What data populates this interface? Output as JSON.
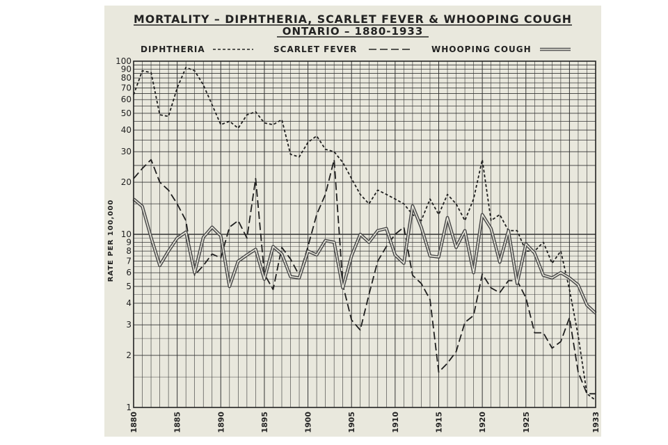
{
  "chart_data": {
    "type": "line",
    "title": "MORTALITY – DIPHTHERIA, SCARLET FEVER & WHOOPING COUGH",
    "subtitle": "ONTARIO – 1880-1933",
    "ylabel": "RATE PER 100,000",
    "xlabel": "",
    "yscale": "log",
    "ylim": [
      1,
      100
    ],
    "xlim": [
      1880,
      1933
    ],
    "grid": true,
    "legend_position": "top",
    "y_tick_labels": [
      "1",
      "2",
      "3",
      "4",
      "5",
      "6",
      "7",
      "8",
      "9",
      "10",
      "20",
      "30",
      "40",
      "50",
      "60",
      "70",
      "80",
      "90",
      "100"
    ],
    "x_tick_labels": [
      "1880",
      "1885",
      "1890",
      "1895",
      "1900",
      "1905",
      "1910",
      "1915",
      "1920",
      "1925",
      "1933"
    ],
    "x_tick_values": [
      1880,
      1885,
      1890,
      1895,
      1900,
      1905,
      1910,
      1915,
      1920,
      1925,
      1933
    ],
    "x": [
      1880,
      1881,
      1882,
      1883,
      1884,
      1885,
      1886,
      1887,
      1888,
      1889,
      1890,
      1891,
      1892,
      1893,
      1894,
      1895,
      1896,
      1897,
      1898,
      1899,
      1900,
      1901,
      1902,
      1903,
      1904,
      1905,
      1906,
      1907,
      1908,
      1909,
      1910,
      1911,
      1912,
      1913,
      1914,
      1915,
      1916,
      1917,
      1918,
      1919,
      1920,
      1921,
      1922,
      1923,
      1924,
      1925,
      1926,
      1927,
      1928,
      1929,
      1930,
      1931,
      1932,
      1933
    ],
    "series": [
      {
        "name": "DIPHTHERIA",
        "style": "short-dash",
        "values": [
          64,
          88,
          86,
          49,
          48,
          70,
          92,
          88,
          73,
          56,
          43,
          45,
          41,
          49,
          51,
          44,
          43,
          46,
          29,
          28,
          34,
          37,
          31,
          30,
          26,
          21,
          17,
          15,
          18,
          17,
          16,
          15,
          13,
          12,
          16,
          13,
          17,
          15,
          12,
          16,
          27,
          12,
          13,
          10.5,
          10.5,
          8,
          8,
          9,
          6.8,
          8,
          4.8,
          2.6,
          1.2,
          1.1
        ]
      },
      {
        "name": "SCARLET FEVER",
        "style": "long-dash",
        "values": [
          21,
          24,
          27,
          20,
          18,
          15,
          12,
          5.8,
          6.6,
          7.7,
          7.3,
          11,
          12,
          9.5,
          21,
          5.9,
          4.8,
          8.4,
          7.2,
          5.8,
          8.5,
          13,
          17,
          27,
          5.1,
          3.2,
          2.8,
          4.5,
          7,
          8.5,
          10,
          11,
          5.8,
          5.2,
          4.2,
          1.6,
          1.8,
          2.1,
          3.1,
          3.4,
          5.9,
          4.9,
          4.6,
          5.4,
          5.4,
          4.3,
          2.7,
          2.7,
          2.2,
          2.4,
          3.3,
          1.6,
          1.2,
          1.2
        ]
      },
      {
        "name": "WHOOPING COUGH",
        "style": "double",
        "values": [
          16,
          14.5,
          9.6,
          6.6,
          8,
          9.5,
          10.3,
          6,
          9.6,
          11,
          9.8,
          5,
          7,
          7.6,
          8.2,
          5.5,
          8.5,
          7.7,
          5.7,
          5.6,
          8,
          7.6,
          9.2,
          9,
          4.9,
          7.5,
          10,
          9,
          10.5,
          10.8,
          7.6,
          6.8,
          14.6,
          11,
          7.5,
          7.4,
          12.5,
          8.4,
          10.5,
          6,
          13,
          10.8,
          6.9,
          10.5,
          5.2,
          8.8,
          7.8,
          5.8,
          5.6,
          6,
          5.6,
          5.1,
          3.9,
          3.5
        ]
      }
    ]
  }
}
